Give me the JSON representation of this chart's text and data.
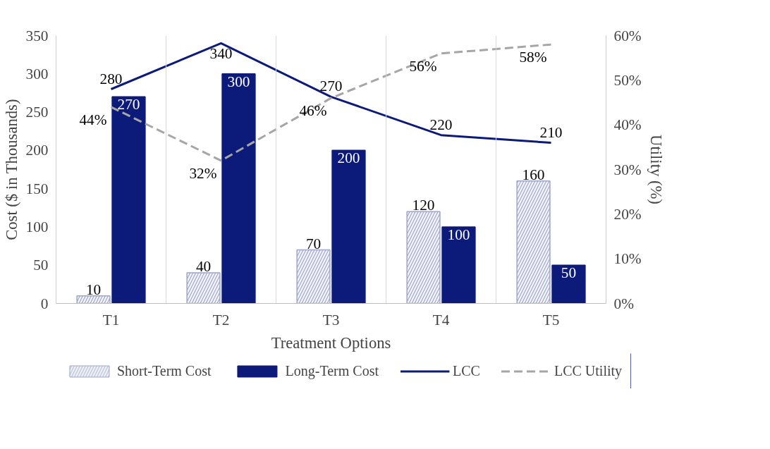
{
  "chart_data": {
    "type": "bar",
    "xlabel": "Treatment Options",
    "ylabel": "Cost ($ in Thousands)",
    "y2label": "Utility (%)",
    "categories": [
      "T1",
      "T2",
      "T3",
      "T4",
      "T5"
    ],
    "series": [
      {
        "name": "Short-Term Cost",
        "type": "bar",
        "color": "#9ea5c8",
        "values": [
          10,
          40,
          70,
          120,
          160
        ]
      },
      {
        "name": "Long-Term Cost",
        "type": "bar",
        "color": "#0c1a7a",
        "values": [
          270,
          300,
          200,
          100,
          50
        ]
      },
      {
        "name": "LCC",
        "type": "line",
        "color": "#0c1a7a",
        "values": [
          280,
          340,
          270,
          220,
          210
        ],
        "line_style": "solid"
      },
      {
        "name": "LCC Utility",
        "type": "line",
        "color": "#a6a6a6",
        "values": [
          44,
          32,
          46,
          56,
          58
        ],
        "axis": "y2",
        "line_style": "dashed",
        "value_labels": [
          "44%",
          "32%",
          "46%",
          "56%",
          "58%"
        ]
      }
    ],
    "ylim": [
      0,
      350
    ],
    "yticks": [
      0,
      50,
      100,
      150,
      200,
      250,
      300,
      350
    ],
    "y2lim": [
      0,
      60
    ],
    "y2ticks": [
      {
        "value": 0,
        "label": "0%"
      },
      {
        "value": 10,
        "label": "10%"
      },
      {
        "value": 20,
        "label": "20%"
      },
      {
        "value": 30,
        "label": "30%"
      },
      {
        "value": 40,
        "label": "40%"
      },
      {
        "value": 50,
        "label": "50%"
      },
      {
        "value": 60,
        "label": "60%"
      }
    ],
    "data_labels": true,
    "grid": "x",
    "legend": "bottom"
  }
}
